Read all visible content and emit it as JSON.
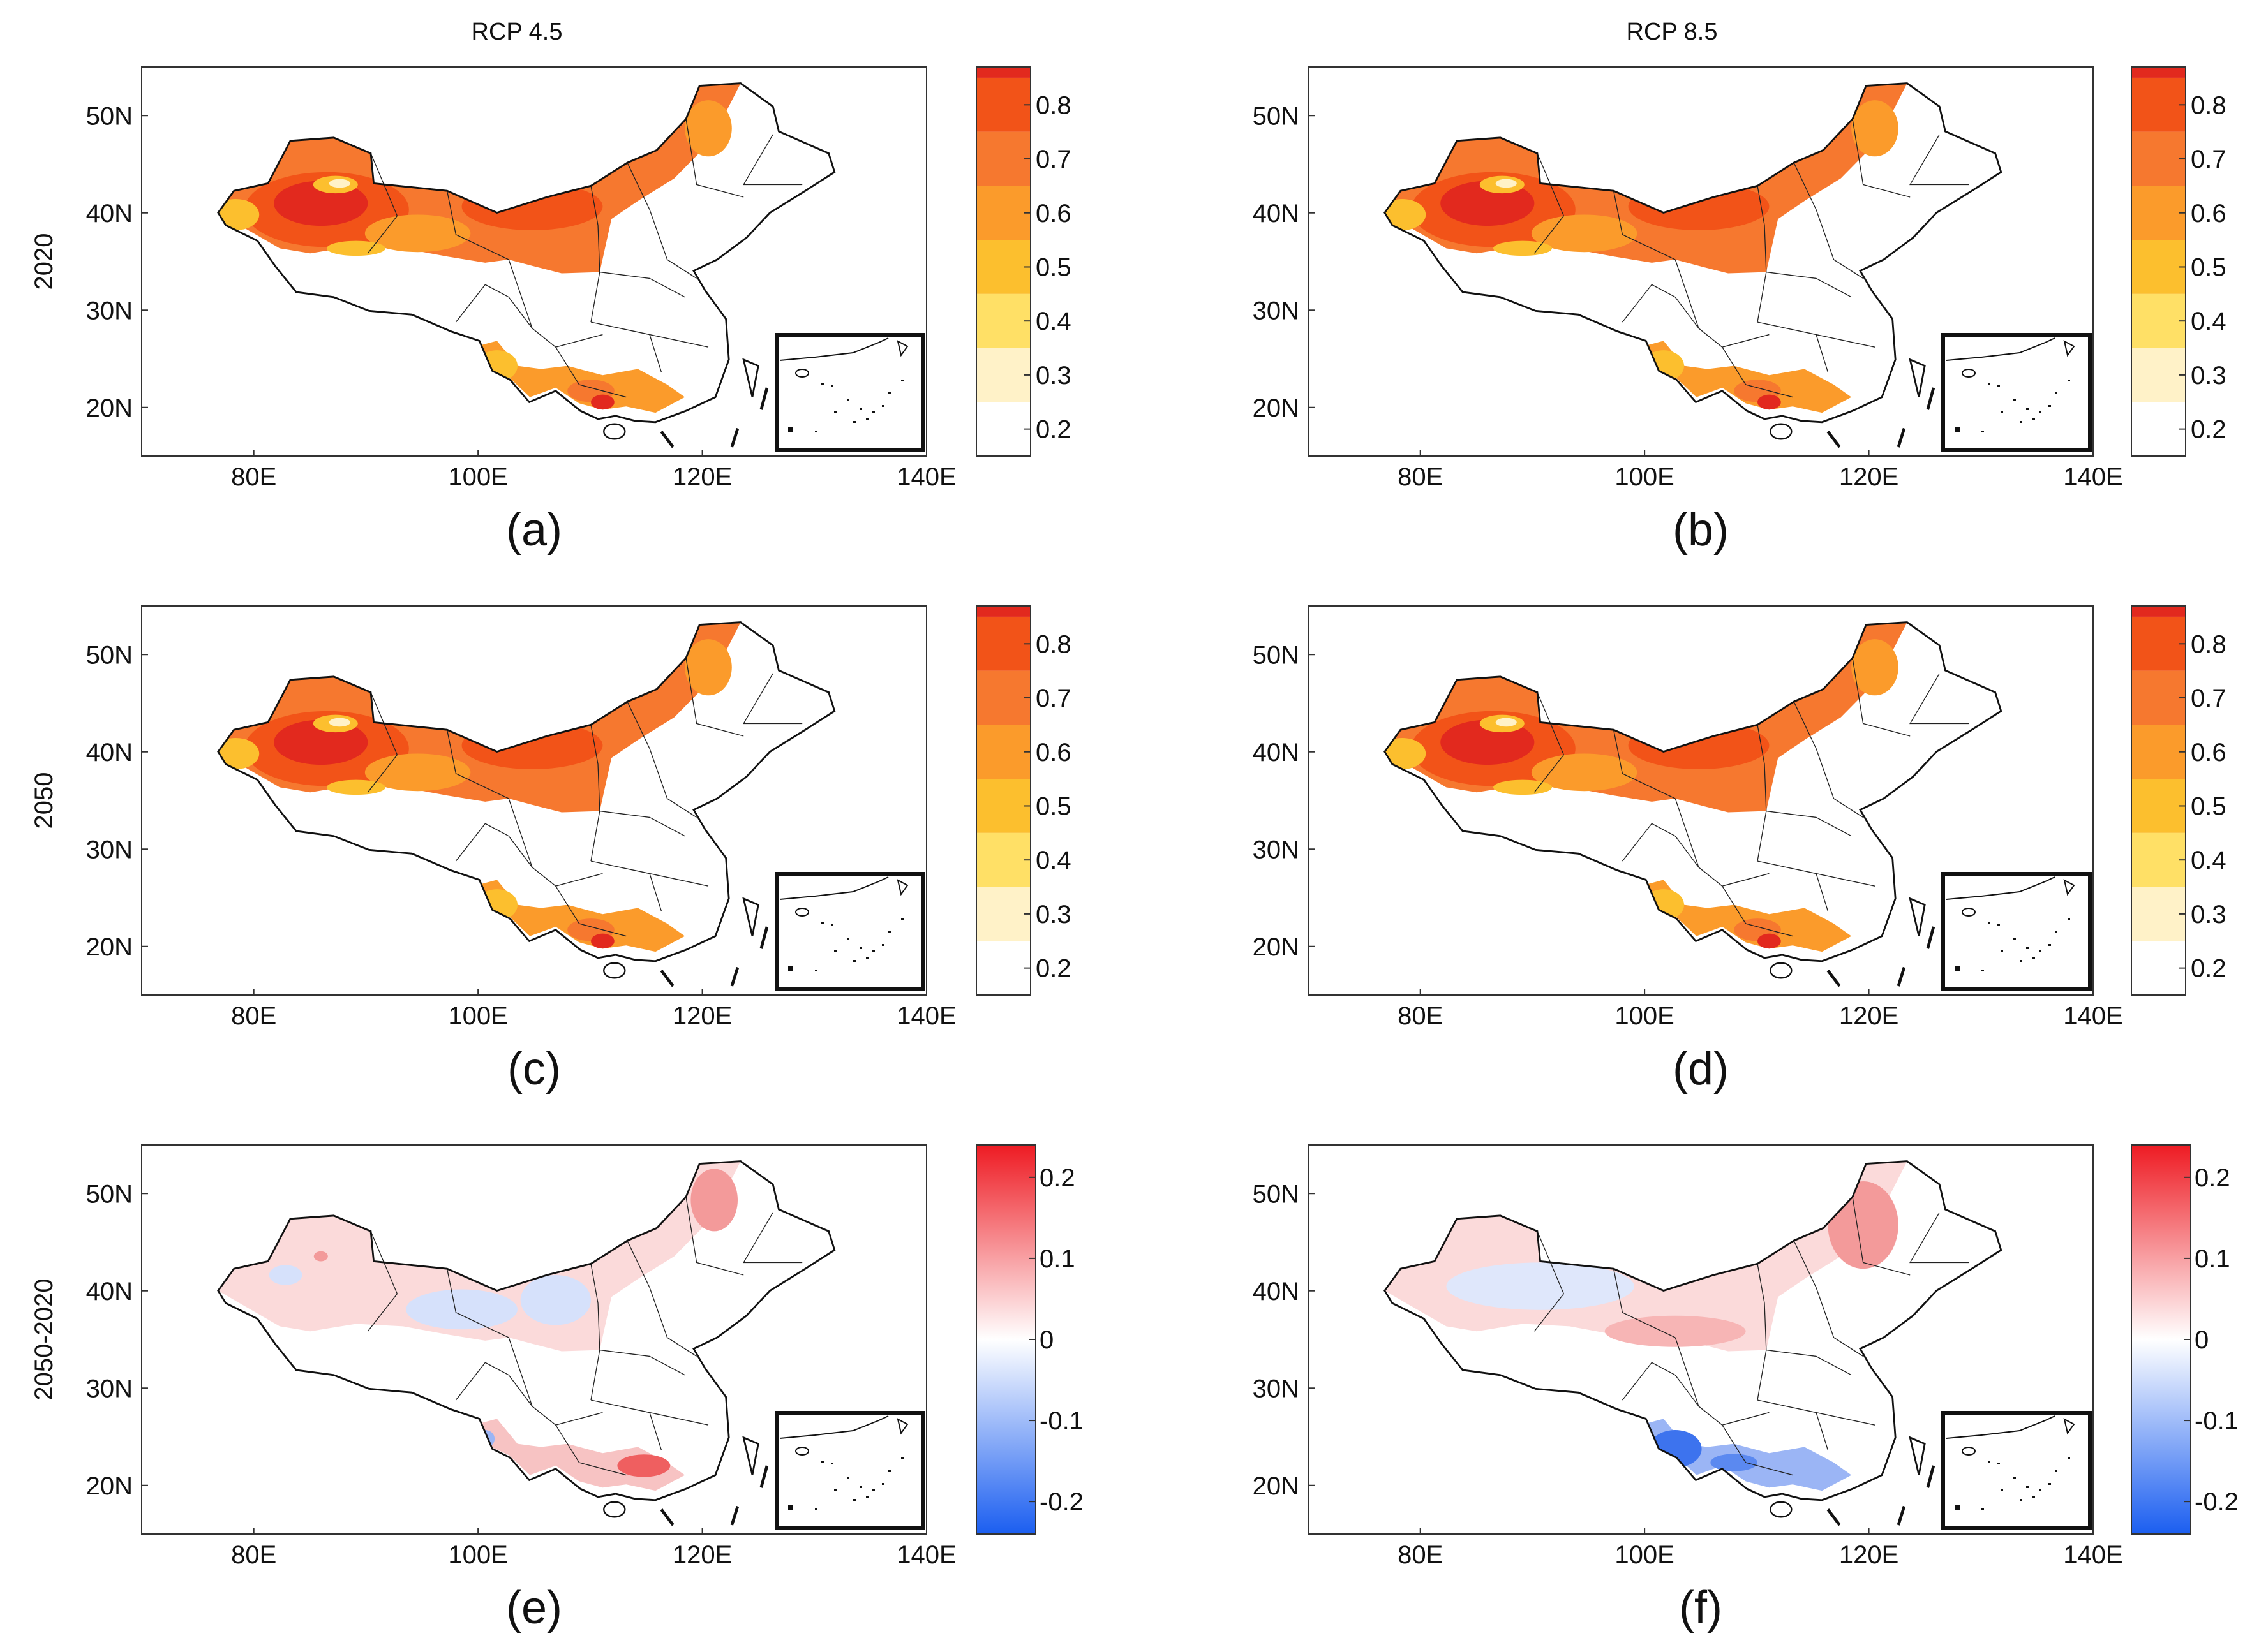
{
  "columns": [
    "RCP 4.5",
    "RCP 8.5"
  ],
  "rows": [
    "2020",
    "2050",
    "2050-2020"
  ],
  "panel_letters": [
    "(a)",
    "(b)",
    "(c)",
    "(d)",
    "(e)",
    "(f)"
  ],
  "x_ticks": [
    "80E",
    "100E",
    "120E",
    "140E"
  ],
  "y_ticks": [
    "20N",
    "30N",
    "40N",
    "50N"
  ],
  "colorbar_abs": {
    "ticks": [
      "0.2",
      "0.3",
      "0.4",
      "0.5",
      "0.6",
      "0.7",
      "0.8"
    ],
    "colors": [
      "#ffffff",
      "#fff2c8",
      "#ffe066",
      "#fcbf2e",
      "#fb9b2b",
      "#f6782f",
      "#f25318",
      "#e2291e",
      "#c7181c"
    ]
  },
  "colorbar_diff": {
    "ticks": [
      "0.2",
      "0.1",
      "0",
      "-0.1",
      "-0.2"
    ],
    "top_color": "#ee1b23",
    "mid_color": "#ffffff",
    "bottom_color": "#1b5ef0"
  },
  "chart_data": {
    "type": "heatmap",
    "description_units": "lon (E), lat (N)",
    "xlim": [
      70,
      140
    ],
    "ylim": [
      15,
      55
    ],
    "panels": [
      {
        "id": "a",
        "scenario": "RCP 4.5",
        "period": "2020",
        "range": [
          0.15,
          0.87
        ]
      },
      {
        "id": "b",
        "scenario": "RCP 8.5",
        "period": "2020",
        "range": [
          0.15,
          0.87
        ]
      },
      {
        "id": "c",
        "scenario": "RCP 4.5",
        "period": "2050",
        "range": [
          0.15,
          0.87
        ]
      },
      {
        "id": "d",
        "scenario": "RCP 8.5",
        "period": "2050",
        "range": [
          0.15,
          0.87
        ]
      },
      {
        "id": "e",
        "scenario": "RCP 4.5",
        "period": "2050-2020",
        "range": [
          -0.24,
          0.24
        ]
      },
      {
        "id": "f",
        "scenario": "RCP 8.5",
        "period": "2050-2020",
        "range": [
          -0.24,
          0.24
        ]
      }
    ]
  }
}
